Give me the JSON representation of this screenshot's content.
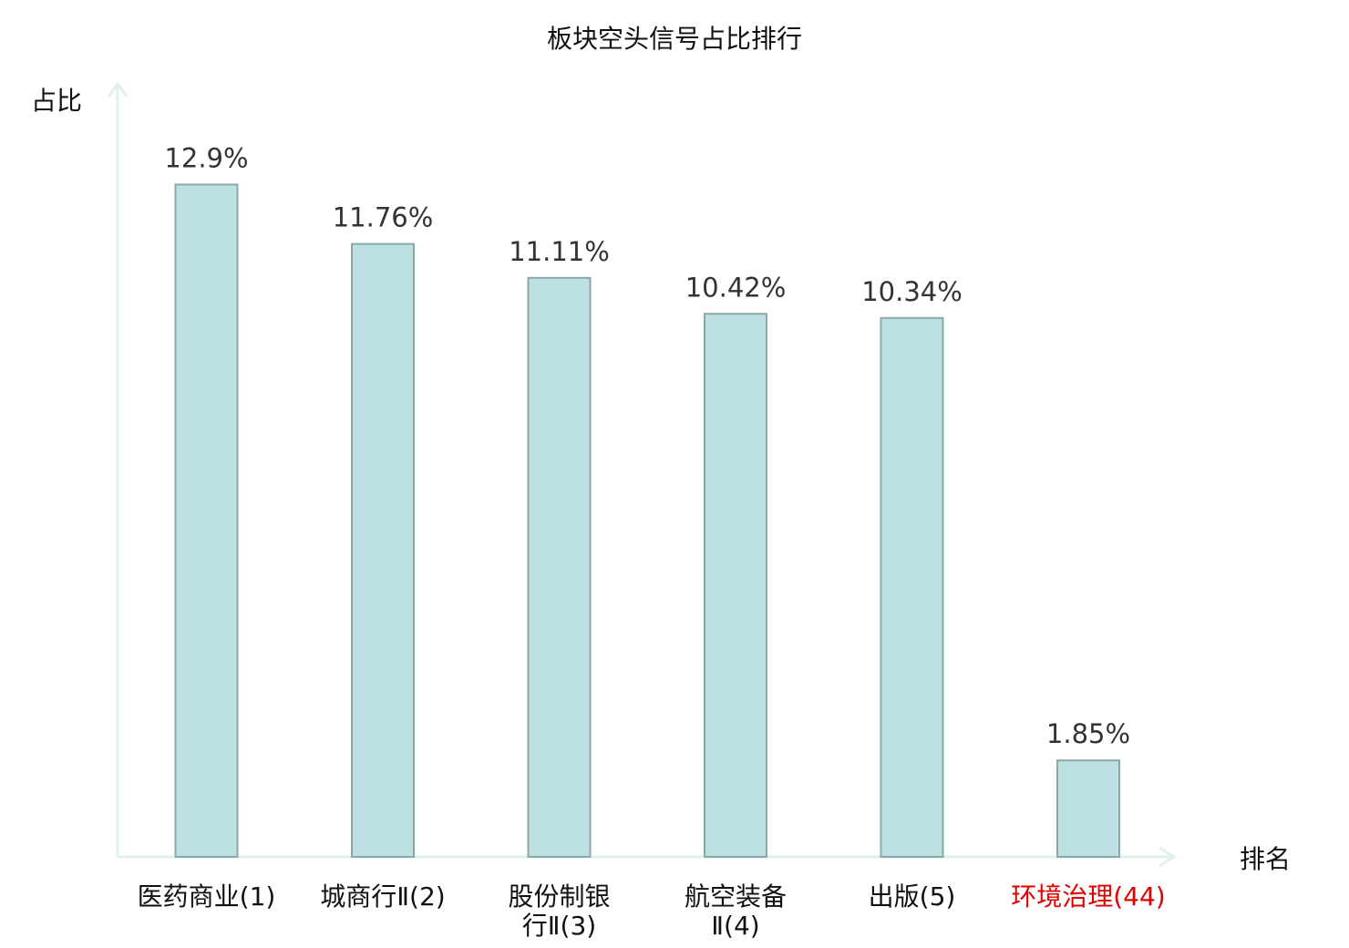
{
  "chart_data": {
    "type": "bar",
    "title": "板块空头信号占比排行",
    "ylabel": "占比",
    "xlabel": "排名",
    "categories": [
      {
        "lines": [
          "医药商业(1)"
        ],
        "highlight": false
      },
      {
        "lines": [
          "城商行Ⅱ(2)"
        ],
        "highlight": false
      },
      {
        "lines": [
          "股份制银",
          "行Ⅱ(3)"
        ],
        "highlight": false
      },
      {
        "lines": [
          "航空装备",
          "Ⅱ(4)"
        ],
        "highlight": false
      },
      {
        "lines": [
          "出版(5)"
        ],
        "highlight": false
      },
      {
        "lines": [
          "环境治理(44)"
        ],
        "highlight": true
      }
    ],
    "values": [
      12.9,
      11.76,
      11.11,
      10.42,
      10.34,
      1.85
    ],
    "value_labels": [
      "12.9%",
      "11.76%",
      "11.11%",
      "10.42%",
      "10.34%",
      "1.85%"
    ],
    "ylim": [
      0,
      14.43
    ],
    "grid": false,
    "colors": {
      "bar_fill": "#bde0e2",
      "bar_stroke": "#8aa8aa",
      "axis": "#dff0ee",
      "label": "#333333",
      "highlight": "#e00000"
    }
  }
}
